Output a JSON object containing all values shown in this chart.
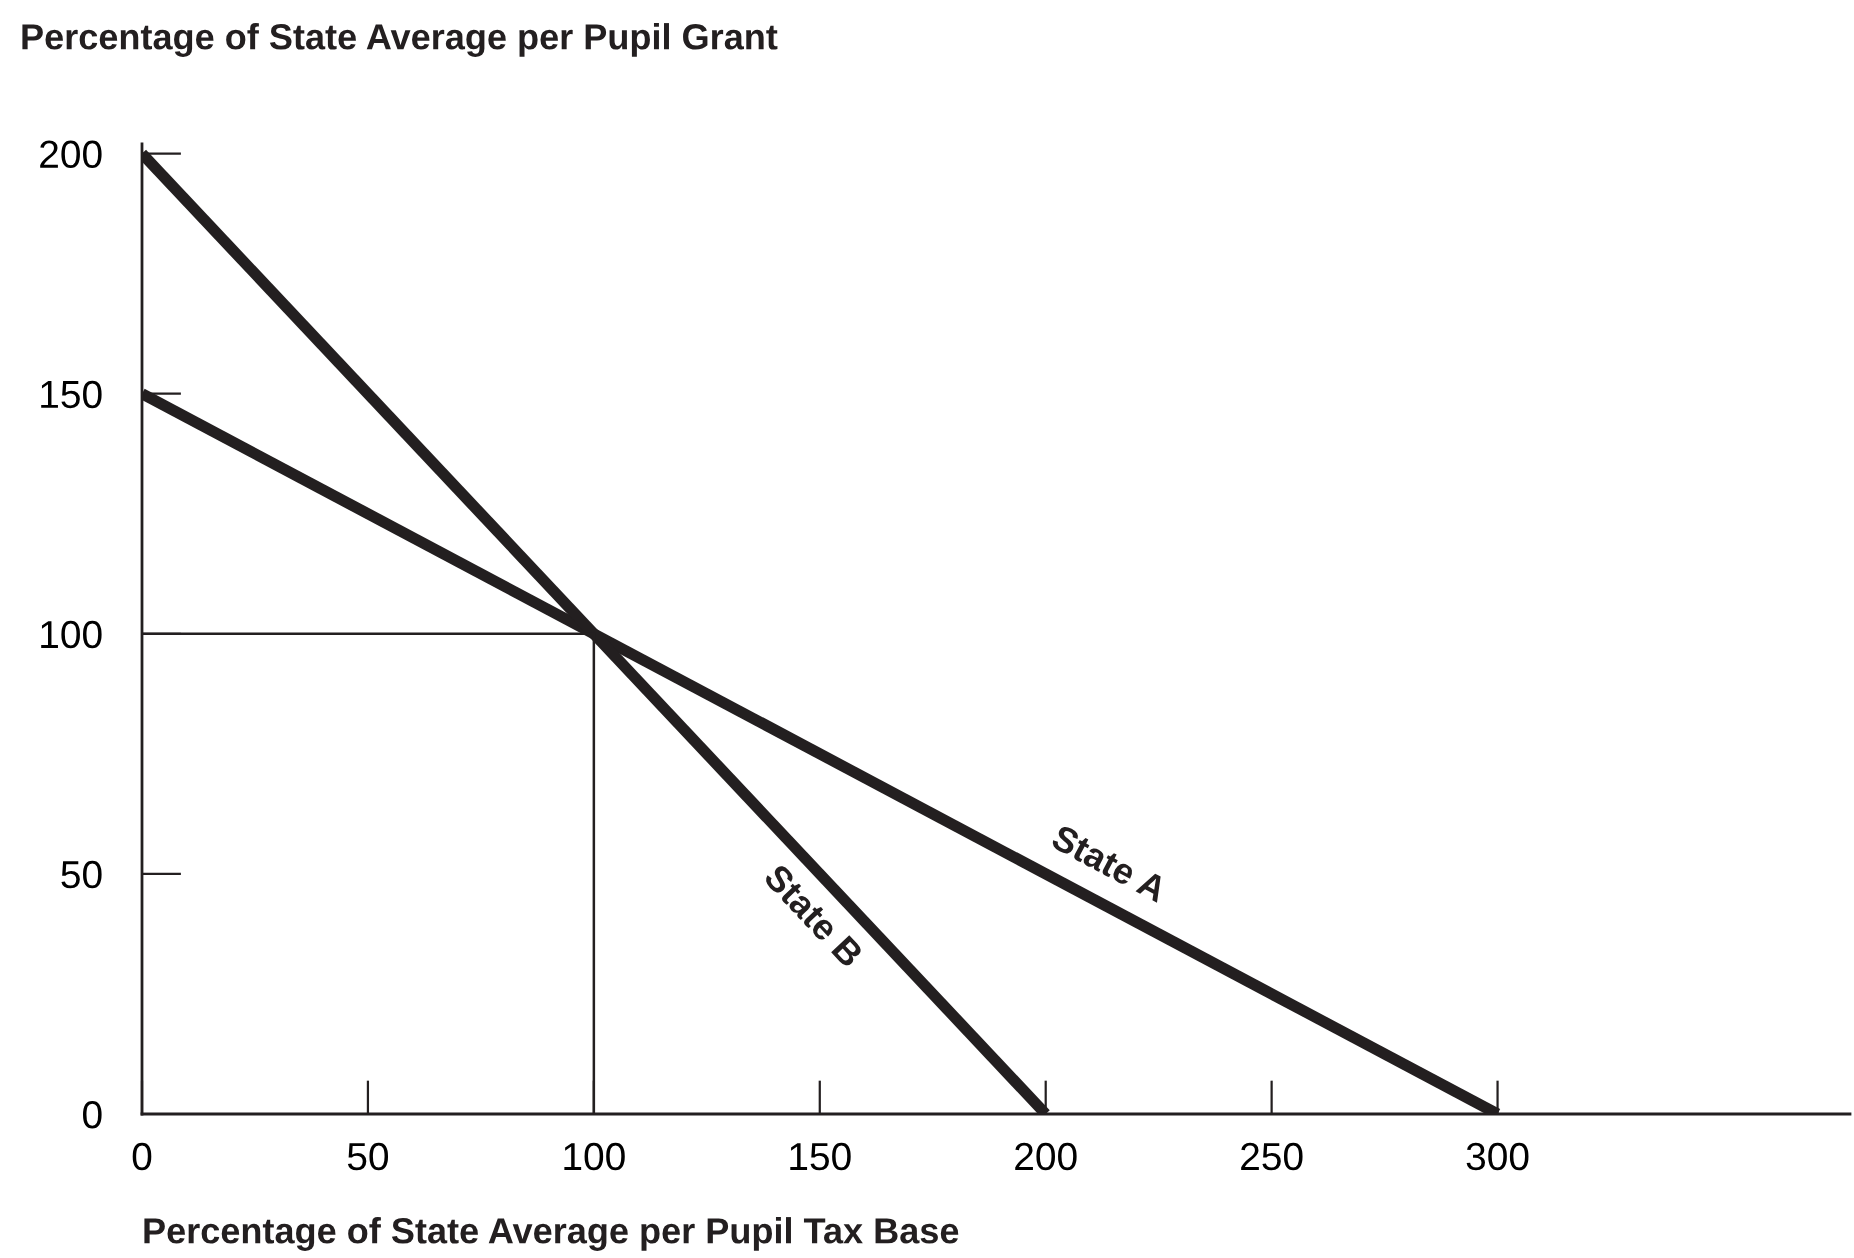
{
  "chart_data": {
    "type": "line",
    "xlabel": "Percentage of State Average per Pupil Tax Base",
    "ylabel": "Percentage of State Average per Pupil Grant",
    "series": [
      {
        "name": "State A",
        "color": "#231f20",
        "x": [
          0,
          300
        ],
        "values": [
          150,
          0
        ]
      },
      {
        "name": "State B",
        "color": "#231f20",
        "x": [
          0,
          200
        ],
        "values": [
          200,
          0
        ]
      },
      {
        "color": "#231f20",
        "x": [
          0,
          100,
          100
        ],
        "values": [
          100,
          100,
          0
        ]
      }
    ],
    "xlim": [
      0,
      378
    ],
    "ylim": [
      0,
      202
    ],
    "xticks": [
      0,
      50,
      100,
      150,
      200,
      250,
      300
    ],
    "yticks": [
      0,
      50,
      100,
      150,
      200
    ],
    "grid": false,
    "legend": false,
    "marker": "none",
    "line_style": "solid"
  }
}
